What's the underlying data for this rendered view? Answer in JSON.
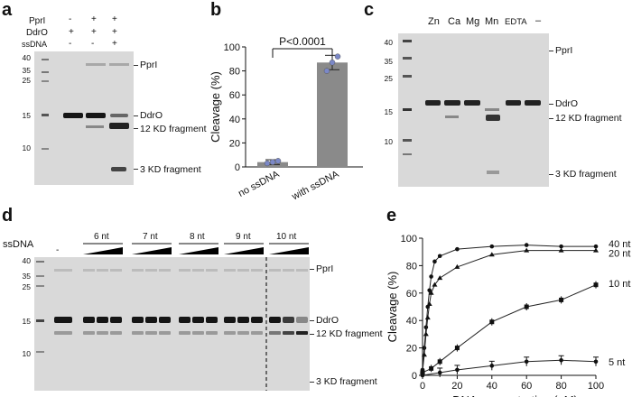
{
  "panels": {
    "a": "a",
    "b": "b",
    "c": "c",
    "d": "d",
    "e": "e"
  },
  "panel_a": {
    "row_labels": [
      "PprI",
      "DdrO",
      "ssDNA"
    ],
    "lane_signs": [
      [
        "-",
        "+",
        "+"
      ],
      [
        "+",
        "+",
        "+"
      ],
      [
        "-",
        "-",
        "+"
      ]
    ],
    "mw_markers": [
      "40",
      "35",
      "25",
      "15",
      "10"
    ],
    "band_labels": [
      "PprI",
      "DdrO",
      "12 KD fragment",
      "3 KD fragment"
    ]
  },
  "panel_b": {
    "ylabel": "Cleavage (%)",
    "yticks": [
      "0",
      "20",
      "40",
      "60",
      "80",
      "100"
    ],
    "categories": [
      "no ssDNA",
      "with ssDNA"
    ],
    "pvalue": "P<0.0001"
  },
  "panel_c": {
    "lanes": [
      "Zn",
      "Ca",
      "Mg",
      "Mn",
      "EDTA",
      "–"
    ],
    "mw_markers": [
      "40",
      "35",
      "25",
      "15",
      "10"
    ],
    "band_labels": [
      "PprI",
      "DdrO",
      "12 KD fragment",
      "3 KD fragment"
    ]
  },
  "panel_d": {
    "row_label": "ssDNA",
    "dash": "-",
    "groups": [
      "6 nt",
      "7 nt",
      "8 nt",
      "9 nt",
      "10 nt"
    ],
    "mw_markers": [
      "40",
      "35",
      "25",
      "15",
      "10"
    ],
    "band_labels": [
      "PprI",
      "DdrO",
      "12 KD fragment",
      "3 KD fragment"
    ]
  },
  "panel_e": {
    "ylabel": "Cleavage (%)",
    "xlabel": "ssDNA concentration (nM)",
    "yticks": [
      "0",
      "20",
      "40",
      "60",
      "80",
      "100"
    ],
    "xticks": [
      "0",
      "20",
      "40",
      "60",
      "80",
      "100"
    ],
    "series_labels": [
      "40 nt",
      "20 nt",
      "10 nt",
      "5 nt"
    ]
  },
  "chart_data": [
    {
      "type": "bar",
      "categories": [
        "no ssDNA",
        "with ssDNA"
      ],
      "values": [
        4,
        87
      ],
      "errors": [
        2,
        6
      ],
      "points": [
        [
          3,
          4,
          5
        ],
        [
          80,
          87,
          92
        ]
      ],
      "ylabel": "Cleavage (%)",
      "ylim": [
        0,
        100
      ],
      "annotation": "P<0.0001"
    },
    {
      "type": "line",
      "xlabel": "ssDNA concentration (nM)",
      "ylabel": "Cleavage (%)",
      "xlim": [
        0,
        100
      ],
      "ylim": [
        0,
        100
      ],
      "series": [
        {
          "name": "40 nt",
          "x": [
            0,
            1,
            2,
            3,
            4,
            5,
            7,
            10,
            20,
            40,
            60,
            80,
            100
          ],
          "y": [
            4,
            20,
            35,
            50,
            62,
            72,
            83,
            87,
            92,
            94,
            95,
            94,
            94
          ]
        },
        {
          "name": "20 nt",
          "x": [
            0,
            1,
            2,
            3,
            4,
            5,
            7,
            10,
            20,
            40,
            60,
            80,
            100
          ],
          "y": [
            3,
            15,
            30,
            42,
            52,
            60,
            66,
            71,
            79,
            88,
            91,
            91,
            91
          ]
        },
        {
          "name": "10 nt",
          "x": [
            0,
            5,
            10,
            20,
            40,
            60,
            80,
            100
          ],
          "y": [
            2,
            5,
            10,
            20,
            39,
            50,
            55,
            66
          ]
        },
        {
          "name": "5 nt",
          "x": [
            0,
            10,
            20,
            40,
            60,
            80,
            100
          ],
          "y": [
            0,
            2,
            4,
            7,
            10,
            11,
            10
          ]
        }
      ]
    }
  ]
}
